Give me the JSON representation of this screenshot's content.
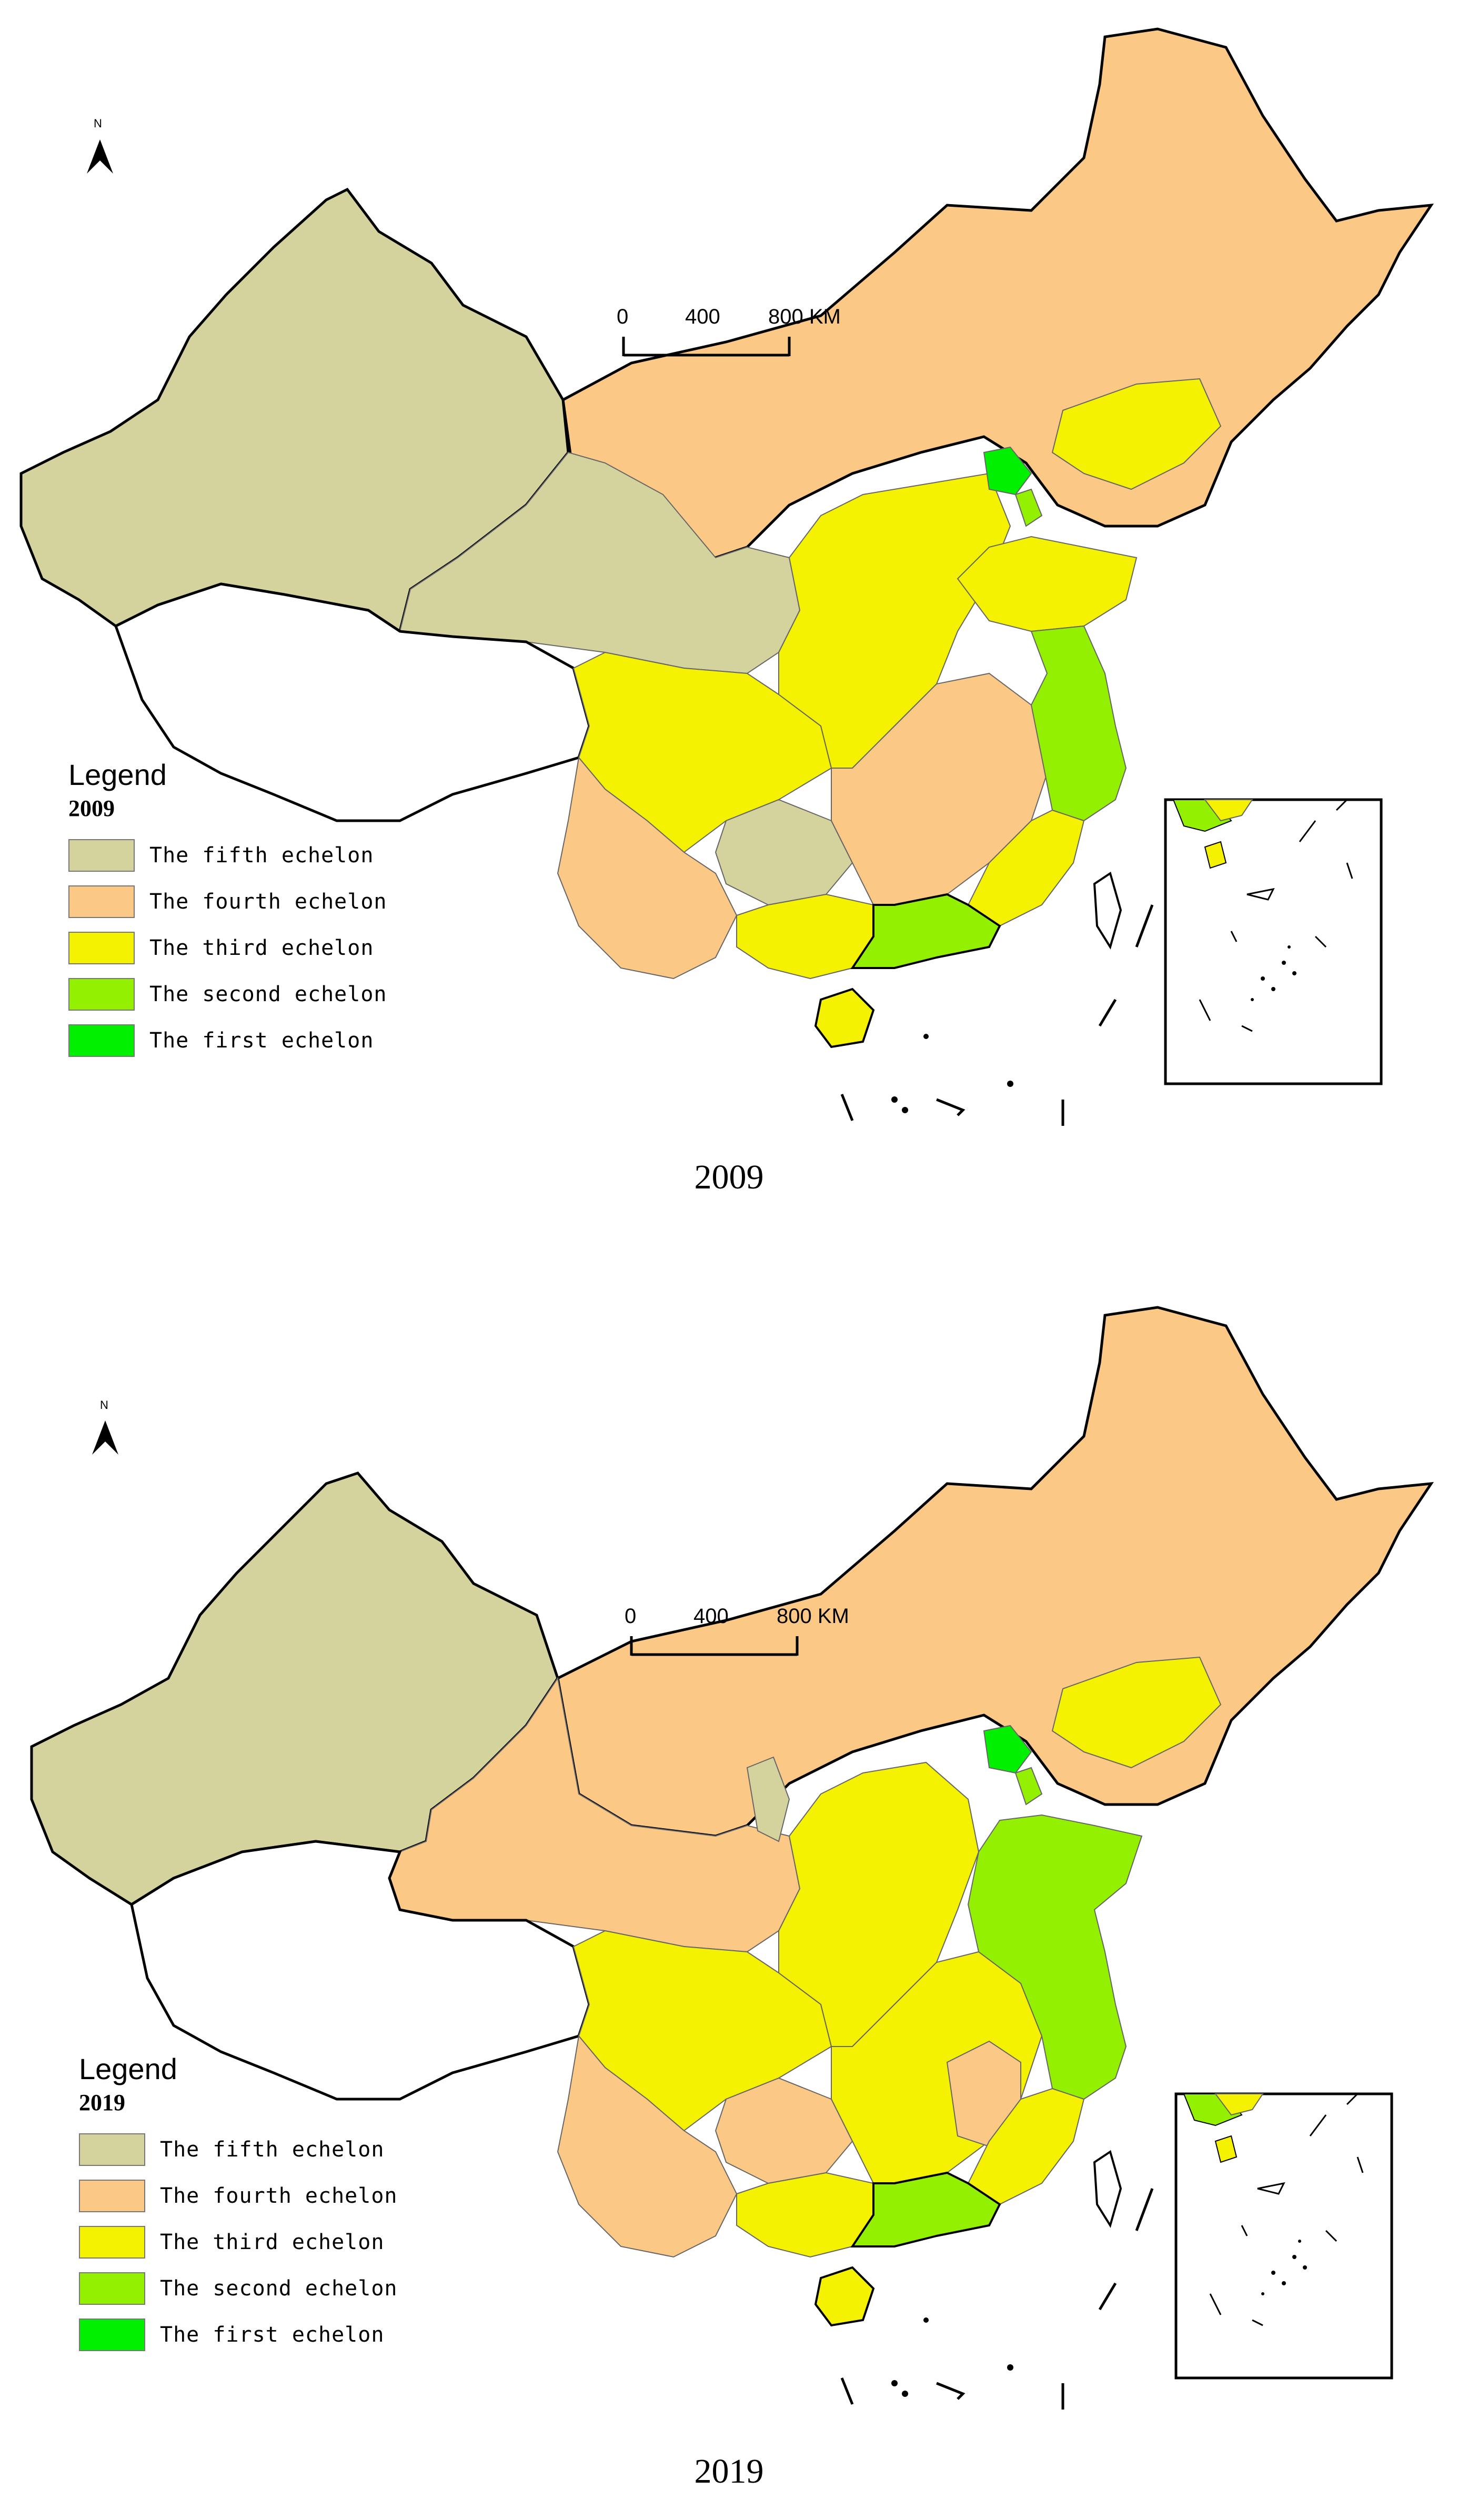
{
  "panels": [
    {
      "caption": "2009",
      "legend": {
        "title": "Legend",
        "year": "2009",
        "items": [
          {
            "label": "The fifth echelon",
            "color": "#d4d39e"
          },
          {
            "label": "The fourth echelon",
            "color": "#fcc886"
          },
          {
            "label": "The third echelon",
            "color": "#f4f200"
          },
          {
            "label": "The second echelon",
            "color": "#93f000"
          },
          {
            "label": "The first echelon",
            "color": "#00f000"
          }
        ]
      },
      "scale": {
        "ticks": [
          "0",
          "400",
          "800 KM"
        ]
      },
      "north": "N"
    },
    {
      "caption": "2019",
      "legend": {
        "title": "Legend",
        "year": "2019",
        "items": [
          {
            "label": "The fifth echelon",
            "color": "#d4d39e"
          },
          {
            "label": "The fourth echelon",
            "color": "#fcc886"
          },
          {
            "label": "The third echelon",
            "color": "#f4f200"
          },
          {
            "label": "The second echelon",
            "color": "#93f000"
          },
          {
            "label": "The first echelon",
            "color": "#00f000"
          }
        ]
      },
      "scale": {
        "ticks": [
          "0",
          "400",
          "800 KM"
        ]
      },
      "north": "N"
    }
  ]
}
